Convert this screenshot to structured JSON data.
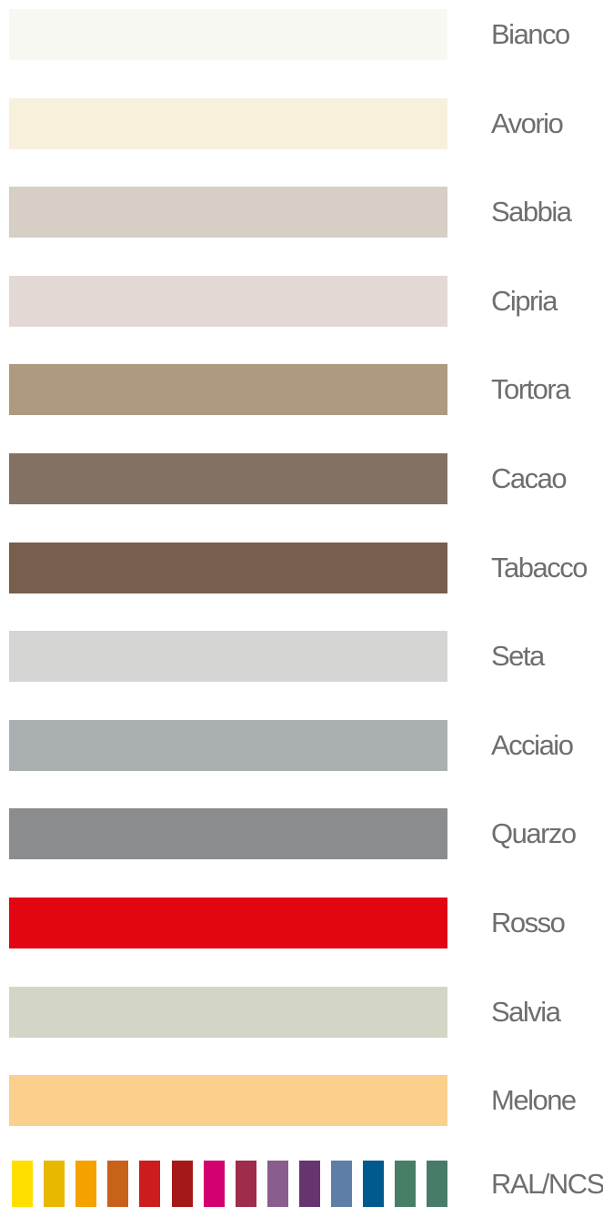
{
  "swatches": [
    {
      "name": "Bianco",
      "color": "#f8f8f3"
    },
    {
      "name": "Avorio",
      "color": "#f7f1dc"
    },
    {
      "name": "Sabbia",
      "color": "#d7cec5"
    },
    {
      "name": "Cipria",
      "color": "#e2d9d5"
    },
    {
      "name": "Tortora",
      "color": "#ad9a7f"
    },
    {
      "name": "Cacao",
      "color": "#837263"
    },
    {
      "name": "Tabacco",
      "color": "#775e4d"
    },
    {
      "name": "Seta",
      "color": "#d5d5d4"
    },
    {
      "name": "Acciaio",
      "color": "#aab0b1"
    },
    {
      "name": "Quarzo",
      "color": "#8b8c8e"
    },
    {
      "name": "Rosso",
      "color": "#e20613"
    },
    {
      "name": "Salvia",
      "color": "#d3d6c6"
    },
    {
      "name": "Melone",
      "color": "#fbd08c"
    }
  ],
  "ral": {
    "label": "RAL/NCS",
    "colors": [
      "#fedf00",
      "#e8b800",
      "#f5a200",
      "#c8621a",
      "#cc1c1e",
      "#a51818",
      "#d4006f",
      "#9f2c4a",
      "#8a5e8c",
      "#66346f",
      "#5e7ea7",
      "#015a8d",
      "#477e66",
      "#487c68"
    ]
  }
}
